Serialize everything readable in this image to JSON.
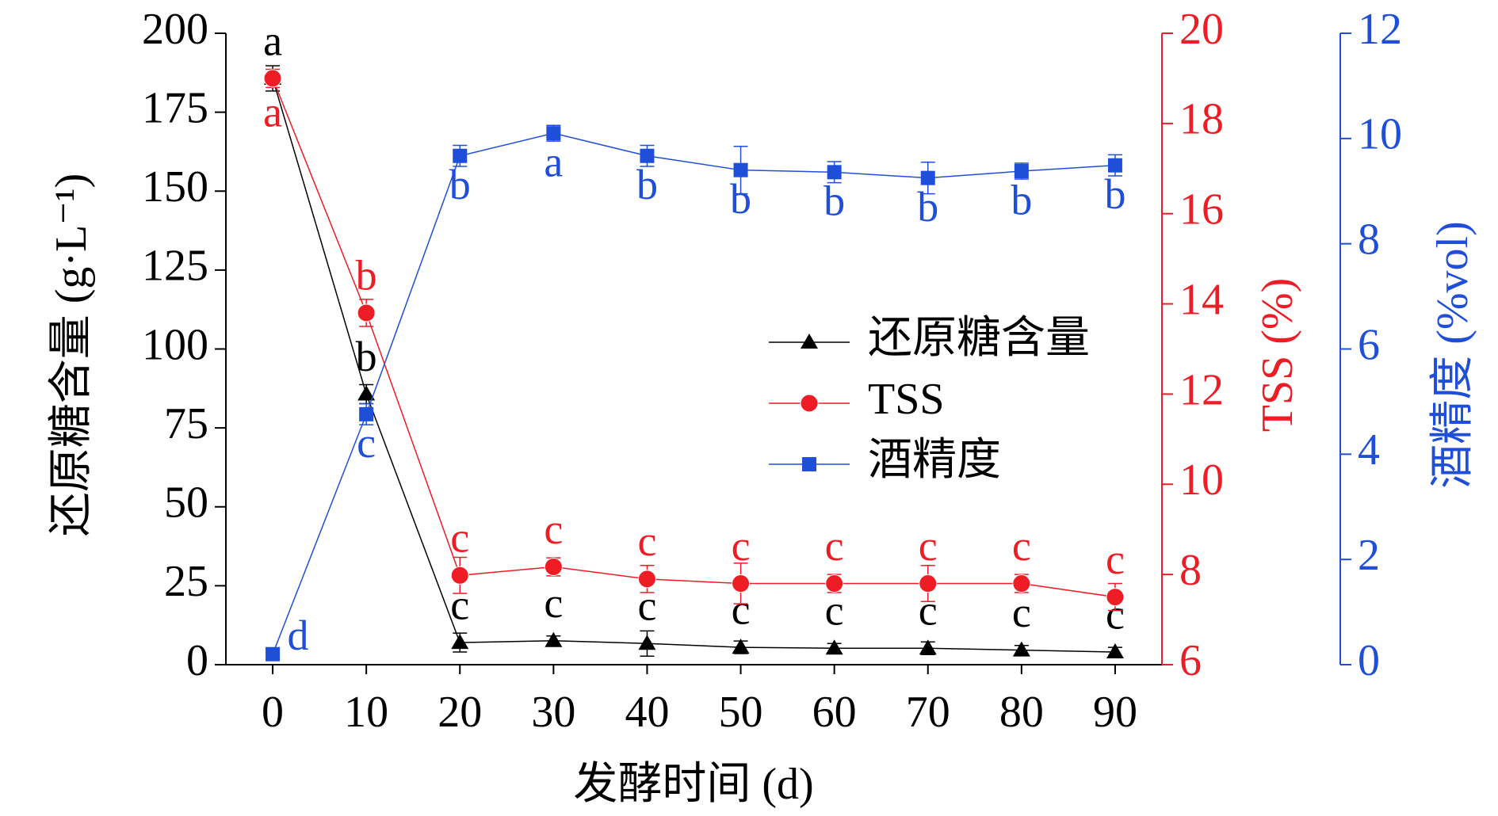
{
  "chart_data": {
    "type": "line",
    "x_label": "发酵时间 (d)",
    "y_label": "还原糖含量 (g·L⁻¹)",
    "y2_label": "TSS (%)",
    "y3_label": "酒精度 (%vol)",
    "x": [
      0,
      10,
      20,
      30,
      40,
      50,
      60,
      70,
      80,
      90
    ],
    "xlim": [
      -5,
      95
    ],
    "xticks": [
      0,
      10,
      20,
      30,
      40,
      50,
      60,
      70,
      80,
      90
    ],
    "ylim": [
      0,
      200
    ],
    "yticks": [
      0,
      25,
      50,
      75,
      100,
      125,
      150,
      175,
      200
    ],
    "y2lim": [
      6,
      20
    ],
    "y2ticks": [
      6,
      8,
      10,
      12,
      14,
      16,
      18,
      20
    ],
    "y3lim": [
      0,
      12
    ],
    "y3ticks": [
      0,
      2,
      4,
      6,
      8,
      10,
      12
    ],
    "series": [
      {
        "name": "还原糖含量",
        "color": "#000000",
        "marker": "triangle",
        "axis": "y",
        "values": [
          185.7,
          85.7,
          7,
          7.6,
          6.7,
          5.5,
          5.2,
          5.2,
          4.6,
          4
        ],
        "errors": [
          4,
          3,
          3,
          1.5,
          4,
          2,
          1.5,
          2,
          1.5,
          1.5
        ],
        "letters": [
          "a",
          "b",
          "c",
          "c",
          "c",
          "c",
          "c",
          "c",
          "c",
          "c"
        ]
      },
      {
        "name": "TSS",
        "color": "#ee1c25",
        "marker": "circle",
        "axis": "y2",
        "values": [
          19.0,
          13.8,
          7.98,
          8.17,
          7.9,
          7.8,
          7.8,
          7.8,
          7.8,
          7.5
        ],
        "errors": [
          0.2,
          0.3,
          0.4,
          0.2,
          0.3,
          0.45,
          0.2,
          0.4,
          0.2,
          0.3
        ],
        "letters": [
          "a",
          "b",
          "c",
          "c",
          "c",
          "c",
          "c",
          "c",
          "c",
          "c"
        ]
      },
      {
        "name": "酒精度",
        "color": "#1f4fd8",
        "marker": "square",
        "axis": "y3",
        "values": [
          0.2,
          4.76,
          9.67,
          10.1,
          9.67,
          9.4,
          9.36,
          9.25,
          9.38,
          9.49
        ],
        "errors": [
          0.1,
          0.2,
          0.2,
          0.15,
          0.2,
          0.45,
          0.2,
          0.3,
          0.15,
          0.2
        ],
        "letters": [
          "d",
          "c",
          "b",
          "a",
          "b",
          "b",
          "b",
          "b",
          "b",
          "b"
        ]
      }
    ]
  }
}
